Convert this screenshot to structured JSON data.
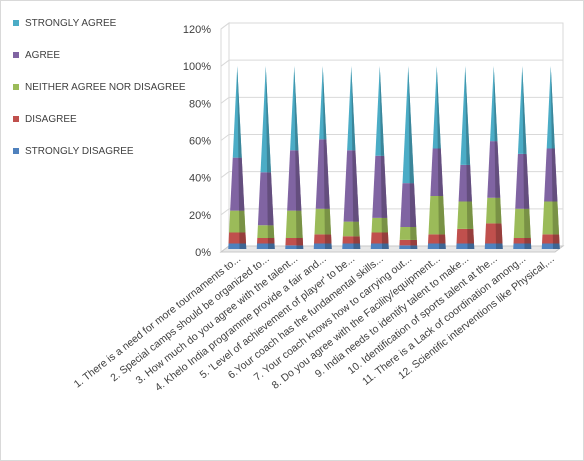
{
  "chart_data": {
    "type": "bar",
    "title": "",
    "xlabel": "",
    "ylabel": "",
    "ylim": [
      0,
      120
    ],
    "yticks": [
      "0%",
      "20%",
      "40%",
      "60%",
      "80%",
      "100%",
      "120%"
    ],
    "grid": true,
    "legend_position": "left",
    "categories": [
      "1. There is a need for more tournaments to...",
      "2. Special camps should be organized to...",
      "3. How much do you agree with the talent...",
      "4. Khelo India programme provide a fair and...",
      "5. 'Level of achievement of player' to be...",
      "6.Your coach has the fundamental skills...",
      "7. Your coach knows how to carrying out...",
      "8. Do you agree with the Facility/equipment...",
      "9. India needs to identify talent to make...",
      "10. Identification of sports talent at the...",
      "11. There is a Lack of coordination among...",
      "12. Scientific interventions like Physical,..."
    ],
    "series": [
      {
        "name": "STRONGLY DISAGREE",
        "color": "#4f81bd",
        "values": [
          3,
          3,
          2,
          3,
          3,
          3,
          2,
          3,
          3,
          3,
          3,
          3
        ]
      },
      {
        "name": "DISAGREE",
        "color": "#c0504d",
        "values": [
          6,
          3,
          4,
          5,
          4,
          6,
          3,
          5,
          8,
          11,
          3,
          5
        ]
      },
      {
        "name": "NEITHER AGREE NOR DISAGREE",
        "color": "#9bbb59",
        "values": [
          12,
          7,
          15,
          14,
          8,
          8,
          7,
          21,
          15,
          14,
          16,
          18
        ]
      },
      {
        "name": "AGREE",
        "color": "#8064a2",
        "values": [
          29,
          29,
          33,
          38,
          39,
          34,
          24,
          26,
          20,
          31,
          30,
          29
        ]
      },
      {
        "name": "STRONGLY AGREE",
        "color": "#4bacc6",
        "values": [
          50,
          58,
          46,
          40,
          46,
          49,
          64,
          45,
          54,
          41,
          48,
          45
        ]
      }
    ]
  }
}
